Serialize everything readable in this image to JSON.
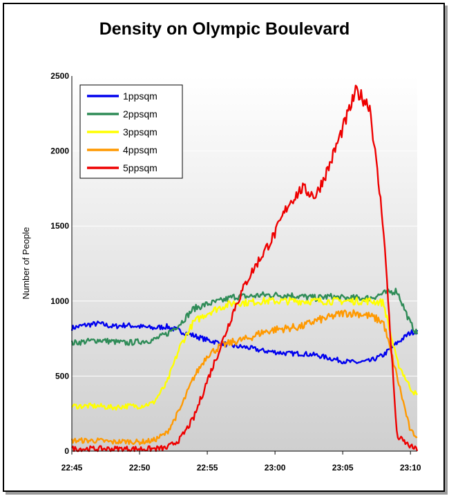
{
  "chart_data": {
    "type": "line",
    "title": "Density on Olympic Boulevard",
    "xlabel": "",
    "ylabel": "Number of People",
    "ylim": [
      0,
      2500
    ],
    "yticks": [
      "0",
      "500",
      "1000",
      "1500",
      "2000",
      "2500"
    ],
    "xticks": [
      "22:45",
      "22:50",
      "22:55",
      "23:00",
      "23:05",
      "23:10"
    ],
    "xlim": [
      "22:45",
      "23:10:30"
    ],
    "x": [
      "22:45",
      "22:46",
      "22:47",
      "22:48",
      "22:49",
      "22:50",
      "22:51",
      "22:52",
      "22:53",
      "22:54",
      "22:55",
      "22:56",
      "22:57",
      "22:58",
      "22:59",
      "23:00",
      "23:01",
      "23:02",
      "23:03",
      "23:04",
      "23:05",
      "23:06",
      "23:07",
      "23:08",
      "23:09",
      "23:10",
      "23:10:30"
    ],
    "legend_position": "top-left",
    "grid": true,
    "series": [
      {
        "name": "1ppsqm",
        "color": "#0000ee",
        "values": [
          820,
          840,
          850,
          830,
          840,
          830,
          820,
          830,
          800,
          770,
          740,
          720,
          700,
          690,
          670,
          660,
          650,
          650,
          640,
          620,
          600,
          590,
          600,
          640,
          720,
          790,
          800
        ]
      },
      {
        "name": "2ppsqm",
        "color": "#2e8b57",
        "values": [
          720,
          730,
          740,
          730,
          720,
          730,
          740,
          780,
          850,
          950,
          980,
          1000,
          1030,
          1030,
          1040,
          1040,
          1040,
          1030,
          1020,
          1030,
          1020,
          1020,
          1020,
          1050,
          1070,
          850,
          780
        ]
      },
      {
        "name": "3ppsqm",
        "color": "#ffff00",
        "values": [
          300,
          300,
          300,
          290,
          300,
          300,
          320,
          450,
          700,
          860,
          920,
          960,
          990,
          990,
          1000,
          1000,
          1000,
          1000,
          1000,
          1000,
          1000,
          1000,
          1000,
          990,
          600,
          420,
          370
        ]
      },
      {
        "name": "4ppsqm",
        "color": "#ff9900",
        "values": [
          70,
          70,
          70,
          60,
          65,
          60,
          70,
          120,
          280,
          490,
          640,
          700,
          730,
          750,
          790,
          810,
          820,
          830,
          870,
          890,
          920,
          920,
          900,
          860,
          500,
          130,
          100
        ]
      },
      {
        "name": "5ppsqm",
        "color": "#ee0000",
        "values": [
          15,
          15,
          15,
          15,
          15,
          15,
          15,
          20,
          80,
          220,
          470,
          700,
          950,
          1150,
          1300,
          1450,
          1650,
          1750,
          1700,
          1900,
          2150,
          2400,
          2300,
          1500,
          100,
          30,
          10
        ]
      }
    ]
  }
}
